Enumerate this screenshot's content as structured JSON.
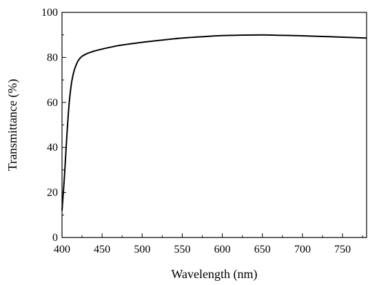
{
  "chart_data": {
    "type": "line",
    "xlabel": "Wavelength (nm)",
    "ylabel": "Transmittance (%)",
    "xlim": [
      400,
      780
    ],
    "ylim": [
      0,
      100
    ],
    "x_ticks": [
      400,
      450,
      500,
      550,
      600,
      650,
      700,
      750
    ],
    "y_ticks": [
      0,
      20,
      40,
      60,
      80,
      100
    ],
    "grid": false,
    "legend": "none",
    "line_color": "#000000",
    "series": [
      {
        "x": [
          400,
          403,
          406,
          409,
          412,
          415,
          418,
          421,
          425,
          430,
          435,
          440,
          450,
          460,
          475,
          500,
          525,
          550,
          575,
          600,
          625,
          650,
          675,
          700,
          725,
          750,
          780
        ],
        "y": [
          12,
          27,
          45,
          60,
          69,
          74,
          77,
          79,
          80.5,
          81.5,
          82.2,
          82.8,
          83.7,
          84.5,
          85.5,
          86.7,
          87.7,
          88.6,
          89.2,
          89.7,
          89.9,
          90.0,
          89.8,
          89.6,
          89.3,
          89.0,
          88.6
        ]
      }
    ]
  }
}
